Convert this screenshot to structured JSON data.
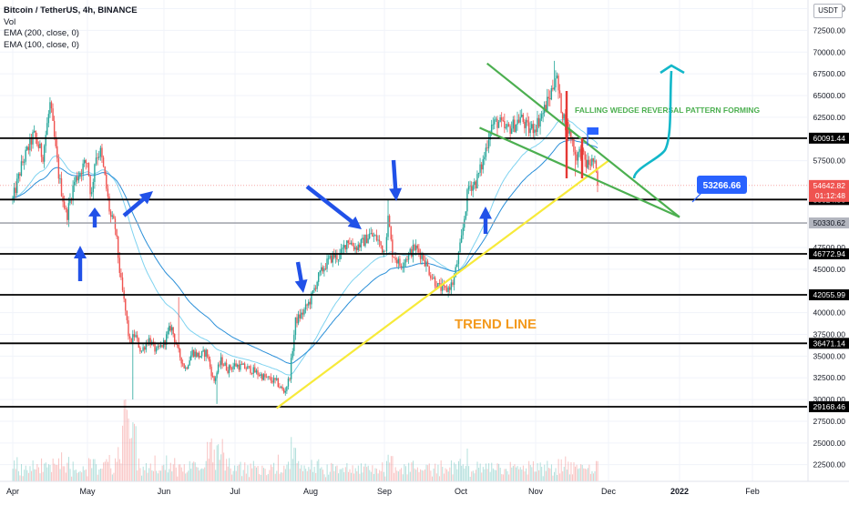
{
  "legend": {
    "symbol": "Bitcoin / TetherUS, 4h, BINANCE",
    "vol": "Vol",
    "ema200": "EMA (200, close, 0)",
    "ema100": "EMA (100, close, 0)"
  },
  "currency": "USDT",
  "colors": {
    "up": "#26a69a",
    "down": "#ef5350",
    "ema_light": "#7fd3f0",
    "ema_dark": "#2a8fd8",
    "level_line": "#000000",
    "trend_line": "#f7ea3a",
    "wedge": "#4caf50",
    "arrow": "#2151e8",
    "target_arrow": "#12b7c9",
    "callout": "#2962ff"
  },
  "chart_data": {
    "type": "candlestick",
    "title": "Bitcoin / TetherUS, 4h, BINANCE",
    "ylim": [
      21000,
      76000
    ],
    "y_ticks": [
      {
        "label": "75000.00",
        "value": 75000
      },
      {
        "label": "72500.00",
        "value": 72500
      },
      {
        "label": "70000.00",
        "value": 70000
      },
      {
        "label": "67500.00",
        "value": 67500
      },
      {
        "label": "65000.00",
        "value": 65000
      },
      {
        "label": "62500.00",
        "value": 62500
      },
      {
        "label": "57500.00",
        "value": 57500
      },
      {
        "label": "47500.00",
        "value": 47500
      },
      {
        "label": "45000.00",
        "value": 45000
      },
      {
        "label": "40000.00",
        "value": 40000
      },
      {
        "label": "37500.00",
        "value": 37500
      },
      {
        "label": "35000.00",
        "value": 35000
      },
      {
        "label": "32500.00",
        "value": 32500
      },
      {
        "label": "30000.00",
        "value": 30000
      },
      {
        "label": "27500.00",
        "value": 27500
      },
      {
        "label": "25000.00",
        "value": 25000
      },
      {
        "label": "22500.00",
        "value": 22500
      }
    ],
    "x_ticks": [
      {
        "label": "Apr",
        "index": 0
      },
      {
        "label": "May",
        "index": 1
      },
      {
        "label": "Jun",
        "index": 2
      },
      {
        "label": "Jul",
        "index": 3
      },
      {
        "label": "Aug",
        "index": 4
      },
      {
        "label": "Sep",
        "index": 5
      },
      {
        "label": "Oct",
        "index": 6
      },
      {
        "label": "Nov",
        "index": 7
      },
      {
        "label": "Dec",
        "index": 8
      },
      {
        "label": "2022",
        "index": 9
      },
      {
        "label": "Feb",
        "index": 10
      }
    ],
    "close_path": [
      {
        "month": 0.0,
        "close": 53000
      },
      {
        "month": 0.12,
        "close": 57000
      },
      {
        "month": 0.28,
        "close": 60500
      },
      {
        "month": 0.4,
        "close": 58000
      },
      {
        "month": 0.5,
        "close": 64000
      },
      {
        "month": 0.55,
        "close": 60500
      },
      {
        "month": 0.62,
        "close": 55500
      },
      {
        "month": 0.72,
        "close": 51000
      },
      {
        "month": 0.82,
        "close": 55000
      },
      {
        "month": 0.95,
        "close": 57000
      },
      {
        "month": 1.0,
        "close": 57500
      },
      {
        "month": 1.05,
        "close": 53000
      },
      {
        "month": 1.1,
        "close": 58000
      },
      {
        "month": 1.17,
        "close": 58500
      },
      {
        "month": 1.22,
        "close": 56000
      },
      {
        "month": 1.3,
        "close": 51000
      },
      {
        "month": 1.36,
        "close": 50000
      },
      {
        "month": 1.43,
        "close": 44000
      },
      {
        "month": 1.5,
        "close": 40000
      },
      {
        "month": 1.55,
        "close": 36500
      },
      {
        "month": 1.62,
        "close": 37500
      },
      {
        "month": 1.7,
        "close": 35500
      },
      {
        "month": 1.8,
        "close": 37000
      },
      {
        "month": 1.9,
        "close": 35500
      },
      {
        "month": 2.0,
        "close": 36500
      },
      {
        "month": 2.1,
        "close": 38500
      },
      {
        "month": 2.2,
        "close": 35500
      },
      {
        "month": 2.3,
        "close": 33500
      },
      {
        "month": 2.4,
        "close": 35500
      },
      {
        "month": 2.5,
        "close": 35000
      },
      {
        "month": 2.6,
        "close": 35500
      },
      {
        "month": 2.7,
        "close": 32000
      },
      {
        "month": 2.8,
        "close": 34500
      },
      {
        "month": 2.9,
        "close": 33500
      },
      {
        "month": 3.0,
        "close": 34000
      },
      {
        "month": 3.2,
        "close": 33500
      },
      {
        "month": 3.4,
        "close": 32500
      },
      {
        "month": 3.55,
        "close": 32000
      },
      {
        "month": 3.65,
        "close": 30800
      },
      {
        "month": 3.72,
        "close": 32500
      },
      {
        "month": 3.8,
        "close": 39000
      },
      {
        "month": 3.9,
        "close": 40000
      },
      {
        "month": 4.0,
        "close": 41500
      },
      {
        "month": 4.1,
        "close": 44000
      },
      {
        "month": 4.2,
        "close": 45500
      },
      {
        "month": 4.3,
        "close": 46500
      },
      {
        "month": 4.4,
        "close": 46500
      },
      {
        "month": 4.5,
        "close": 48500
      },
      {
        "month": 4.6,
        "close": 47500
      },
      {
        "month": 4.7,
        "close": 48000
      },
      {
        "month": 4.8,
        "close": 49000
      },
      {
        "month": 4.9,
        "close": 48500
      },
      {
        "month": 5.0,
        "close": 47000
      },
      {
        "month": 5.05,
        "close": 51000
      },
      {
        "month": 5.1,
        "close": 47000
      },
      {
        "month": 5.2,
        "close": 45500
      },
      {
        "month": 5.3,
        "close": 46500
      },
      {
        "month": 5.4,
        "close": 47500
      },
      {
        "month": 5.5,
        "close": 46500
      },
      {
        "month": 5.6,
        "close": 44500
      },
      {
        "month": 5.7,
        "close": 43000
      },
      {
        "month": 5.8,
        "close": 42500
      },
      {
        "month": 5.9,
        "close": 43500
      },
      {
        "month": 6.0,
        "close": 48000
      },
      {
        "month": 6.1,
        "close": 54500
      },
      {
        "month": 6.2,
        "close": 55000
      },
      {
        "month": 6.3,
        "close": 57500
      },
      {
        "month": 6.4,
        "close": 61500
      },
      {
        "month": 6.5,
        "close": 62000
      },
      {
        "month": 6.6,
        "close": 61000
      },
      {
        "month": 6.7,
        "close": 61500
      },
      {
        "month": 6.8,
        "close": 62500
      },
      {
        "month": 6.9,
        "close": 61000
      },
      {
        "month": 7.0,
        "close": 61500
      },
      {
        "month": 7.1,
        "close": 63000
      },
      {
        "month": 7.2,
        "close": 65000
      },
      {
        "month": 7.28,
        "close": 67500
      },
      {
        "month": 7.33,
        "close": 64500
      },
      {
        "month": 7.4,
        "close": 62000
      },
      {
        "month": 7.5,
        "close": 60000
      },
      {
        "month": 7.55,
        "close": 58000
      },
      {
        "month": 7.62,
        "close": 58500
      },
      {
        "month": 7.7,
        "close": 57000
      },
      {
        "month": 7.8,
        "close": 57500
      },
      {
        "month": 7.85,
        "close": 54642.82
      }
    ],
    "horizontal_levels": [
      {
        "label": "60091.44",
        "value": 60091.44
      },
      {
        "label": "53024.56",
        "value": 53024.56
      },
      {
        "label": "50330.62",
        "value": 50330.62
      },
      {
        "label": "46772.94",
        "value": 46772.94
      },
      {
        "label": "42055.99",
        "value": 42055.99
      },
      {
        "label": "36471.14",
        "value": 36471.14
      },
      {
        "label": "29168.46",
        "value": 29168.46
      }
    ],
    "last_price": "54642.82",
    "countdown": "01:12:48",
    "trend_line": {
      "label": "TREND LINE",
      "from": {
        "month": 3.55,
        "value": 29000
      },
      "to": {
        "month": 8.0,
        "value": 57500
      }
    },
    "wedge": {
      "label": "FALLING WEDGE REVERSAL PATTERN FORMING",
      "upper": {
        "from": {
          "month": 6.35,
          "value": 68700
        },
        "to": {
          "month": 9.0,
          "value": 51000
        }
      },
      "lower": {
        "from": {
          "month": 6.25,
          "value": 61300
        },
        "to": {
          "month": 9.0,
          "value": 51000
        }
      }
    },
    "target_label": "53266.66"
  }
}
